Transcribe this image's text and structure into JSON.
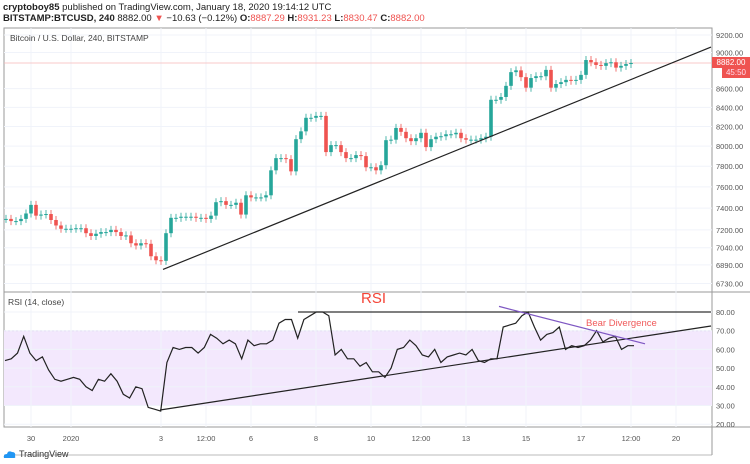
{
  "header": {
    "publisher": "cryptoboy85",
    "published_text": "published on TradingView.com, January 18, 2020 19:14:12 UTC",
    "symbol": "BITSTAMP:BTCUSD, 240",
    "last": "8882.00",
    "change": "−10.63 (−0.12%)",
    "o_label": "O:",
    "o": "8887.29",
    "h_label": "H:",
    "h": "8931.23",
    "l_label": "L:",
    "l": "8830.47",
    "c_label": "C:",
    "c": "8882.00"
  },
  "price_pane": {
    "title": "Bitcoin / U.S. Dollar, 240, BITSTAMP",
    "price_tag": "8882.00",
    "countdown": "45:50"
  },
  "rsi_pane": {
    "title": "RSI (14, close)",
    "annotation_rsi": "RSI",
    "annotation_divergence": "Bear Divergence"
  },
  "footer": {
    "brand": "TradingView"
  },
  "colors": {
    "up": "#26a69a",
    "down": "#ef5350",
    "rsi_band": "#f3e8fd",
    "divergence_line": "#7e57c2",
    "annotation": "#f44336"
  },
  "chart_data": [
    {
      "type": "candlestick",
      "title": "Bitcoin / U.S. Dollar, 240, BITSTAMP",
      "y_scale": "log",
      "ylim": [
        6730,
        9300
      ],
      "y_ticks": [
        "9200.00",
        "9000.00",
        "8600.00",
        "8400.00",
        "8200.00",
        "8000.00",
        "7800.00",
        "7600.00",
        "7400.00",
        "7200.00",
        "7040.00",
        "6890.00",
        "6730.00"
      ],
      "x_ticks": [
        {
          "label": "30",
          "at": 5
        },
        {
          "label": "2020",
          "at": 13
        },
        {
          "label": "3",
          "at": 31
        },
        {
          "label": "12:00",
          "at": 40
        },
        {
          "label": "6",
          "at": 49
        },
        {
          "label": "8",
          "at": 62
        },
        {
          "label": "10",
          "at": 73
        },
        {
          "label": "12:00",
          "at": 83
        },
        {
          "label": "13",
          "at": 92
        },
        {
          "label": "15",
          "at": 104
        },
        {
          "label": "17",
          "at": 115
        },
        {
          "label": "12:00",
          "at": 125
        },
        {
          "label": "20",
          "at": 134
        }
      ],
      "closes": [
        7300,
        7280,
        7280,
        7300,
        7350,
        7430,
        7330,
        7340,
        7345,
        7290,
        7240,
        7210,
        7210,
        7210,
        7215,
        7215,
        7170,
        7145,
        7165,
        7180,
        7180,
        7200,
        7180,
        7145,
        7150,
        7080,
        7060,
        7080,
        7075,
        6965,
        6930,
        6925,
        7170,
        7310,
        7310,
        7320,
        7320,
        7320,
        7310,
        7310,
        7300,
        7330,
        7455,
        7465,
        7430,
        7430,
        7450,
        7340,
        7520,
        7500,
        7500,
        7500,
        7520,
        7760,
        7880,
        7880,
        7870,
        7750,
        8070,
        8150,
        8290,
        8290,
        8310,
        8310,
        7940,
        8010,
        8010,
        7940,
        7880,
        7880,
        7910,
        7900,
        7790,
        7790,
        7760,
        7810,
        8060,
        8065,
        8185,
        8145,
        8080,
        8050,
        8080,
        8135,
        7990,
        8070,
        8095,
        8100,
        8120,
        8120,
        8135,
        8080,
        8065,
        8065,
        8065,
        8080,
        8095,
        8480,
        8480,
        8510,
        8630,
        8780,
        8800,
        8725,
        8610,
        8715,
        8735,
        8735,
        8805,
        8610,
        8650,
        8670,
        8695,
        8685,
        8695,
        8750,
        8915,
        8890,
        8860,
        8850,
        8880,
        8890,
        8830,
        8850,
        8870,
        8882
      ],
      "trendline": {
        "from": {
          "at": 31.4,
          "price": 6850
        },
        "to": {
          "at": 141,
          "price": 9062
        }
      },
      "last_price": 8882.0
    },
    {
      "type": "line",
      "title": "RSI (14, close)",
      "ylim": [
        17,
        88
      ],
      "y_ticks": [
        "80.00",
        "70.00",
        "60.00",
        "50.00",
        "40.00",
        "30.00",
        "20.00"
      ],
      "band": [
        30,
        70
      ],
      "values": [
        54,
        55,
        58,
        67,
        58,
        54,
        56,
        49,
        44,
        43,
        44,
        45,
        44,
        40,
        38,
        44,
        43,
        47,
        43,
        36,
        34,
        40,
        39,
        29,
        28,
        27,
        53,
        61,
        60,
        61,
        61,
        58,
        61,
        68,
        66,
        63,
        65,
        63,
        55,
        65,
        62,
        63,
        63,
        65,
        74,
        76,
        76,
        66,
        76,
        78,
        80,
        80,
        78,
        57,
        60,
        55,
        55,
        51,
        53,
        48,
        48,
        45,
        50,
        60,
        61,
        65,
        62,
        57,
        56,
        60,
        53,
        56,
        57,
        58,
        57,
        60,
        54,
        53,
        55,
        55,
        72,
        73,
        74,
        78,
        80,
        72,
        65,
        68,
        69,
        72,
        60,
        62,
        61,
        62,
        65,
        70,
        64,
        66,
        67,
        60,
        62,
        62
      ],
      "lines": [
        {
          "kind": "horizontal",
          "value": 80,
          "from_at": 58.4,
          "to_at": 141
        },
        {
          "kind": "support",
          "from": {
            "at": 30.8,
            "value": 27.6
          },
          "to": {
            "at": 141,
            "value": 72.5
          }
        },
        {
          "kind": "divergence",
          "from": {
            "at": 98.6,
            "value": 83
          },
          "to": {
            "at": 127.8,
            "value": 63
          }
        }
      ]
    }
  ]
}
